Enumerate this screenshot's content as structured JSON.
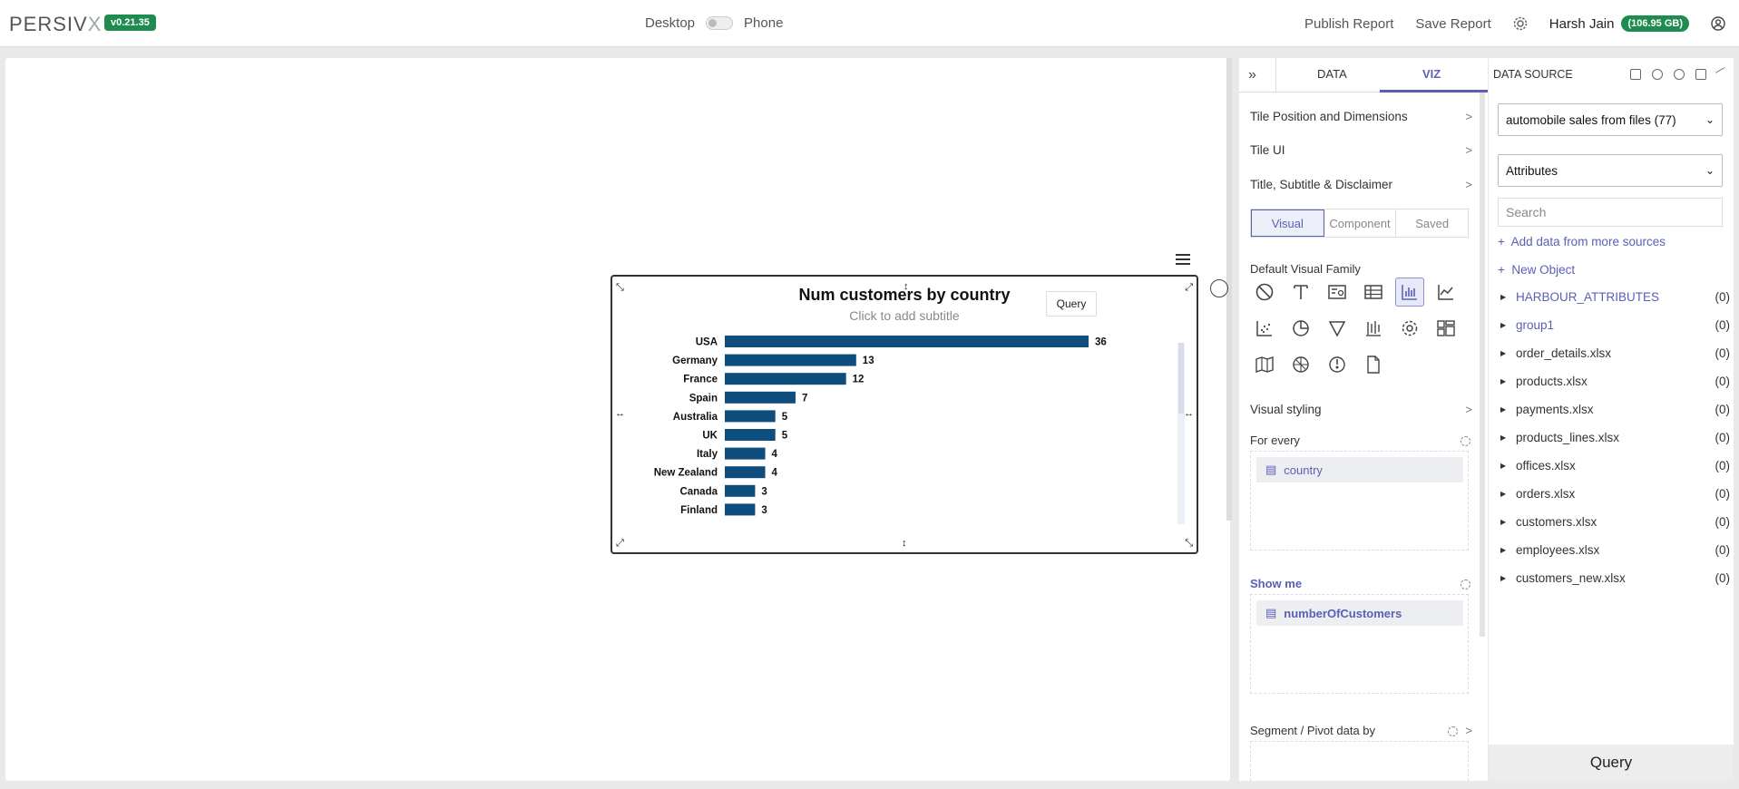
{
  "header": {
    "logo_main": "PERSIV",
    "logo_x": "X",
    "version": "v0.21.35",
    "mode_desktop": "Desktop",
    "mode_phone": "Phone",
    "publish_label": "Publish Report",
    "save_label": "Save Report",
    "user_name": "Harsh Jain",
    "storage": "(106.95 GB)"
  },
  "tile": {
    "query_label": "Query"
  },
  "chart_data": {
    "type": "bar",
    "orientation": "horizontal",
    "title": "Num customers by country",
    "subtitle": "Click to add subtitle",
    "categories": [
      "USA",
      "Germany",
      "France",
      "Spain",
      "Australia",
      "UK",
      "Italy",
      "New Zealand",
      "Canada",
      "Finland"
    ],
    "values": [
      36,
      13,
      12,
      7,
      5,
      5,
      4,
      4,
      3,
      3
    ],
    "bar_color": "#0f4d7d",
    "xlim": [
      0,
      36
    ],
    "grid": false,
    "data_labels": true
  },
  "viz_panel": {
    "tab_data": "DATA",
    "tab_viz": "VIZ",
    "tile_position": "Tile Position and Dimensions",
    "tile_ui": "Tile UI",
    "title_section": "Title, Subtitle & Disclaimer",
    "visual_tabs": [
      "Visual",
      "Component",
      "Saved"
    ],
    "default_family": "Default Visual Family",
    "visual_styling": "Visual styling",
    "for_every": "For every",
    "for_every_field": "country",
    "show_me": "Show me",
    "show_me_field": "numberOfCustomers",
    "segment": "Segment / Pivot data by",
    "icons": [
      "none-icon",
      "text-icon",
      "kpi-card-icon",
      "table-icon",
      "bar-chart-icon",
      "line-chart-icon",
      "scatter-icon",
      "pie-chart-icon",
      "funnel-icon",
      "candlestick-icon",
      "settings-icon",
      "layout-grid-icon",
      "map-icon",
      "radar-icon",
      "gauge-icon",
      "file-icon"
    ]
  },
  "data_source": {
    "heading": "DATA SOURCE",
    "source_select": "automobile sales from files (77)",
    "type_select": "Attributes",
    "search_placeholder": "Search",
    "add_data": "Add data from more sources",
    "new_object": "New Object",
    "items": [
      {
        "name": "HARBOUR_ATTRIBUTES",
        "count": "(0)"
      },
      {
        "name": "group1",
        "count": "(0)"
      },
      {
        "name": "order_details.xlsx",
        "count": "(0)"
      },
      {
        "name": "products.xlsx",
        "count": "(0)"
      },
      {
        "name": "payments.xlsx",
        "count": "(0)"
      },
      {
        "name": "products_lines.xlsx",
        "count": "(0)"
      },
      {
        "name": "offices.xlsx",
        "count": "(0)"
      },
      {
        "name": "orders.xlsx",
        "count": "(0)"
      },
      {
        "name": "customers.xlsx",
        "count": "(0)"
      },
      {
        "name": "employees.xlsx",
        "count": "(0)"
      },
      {
        "name": "customers_new.xlsx",
        "count": "(0)"
      }
    ],
    "query_label": "Query"
  }
}
